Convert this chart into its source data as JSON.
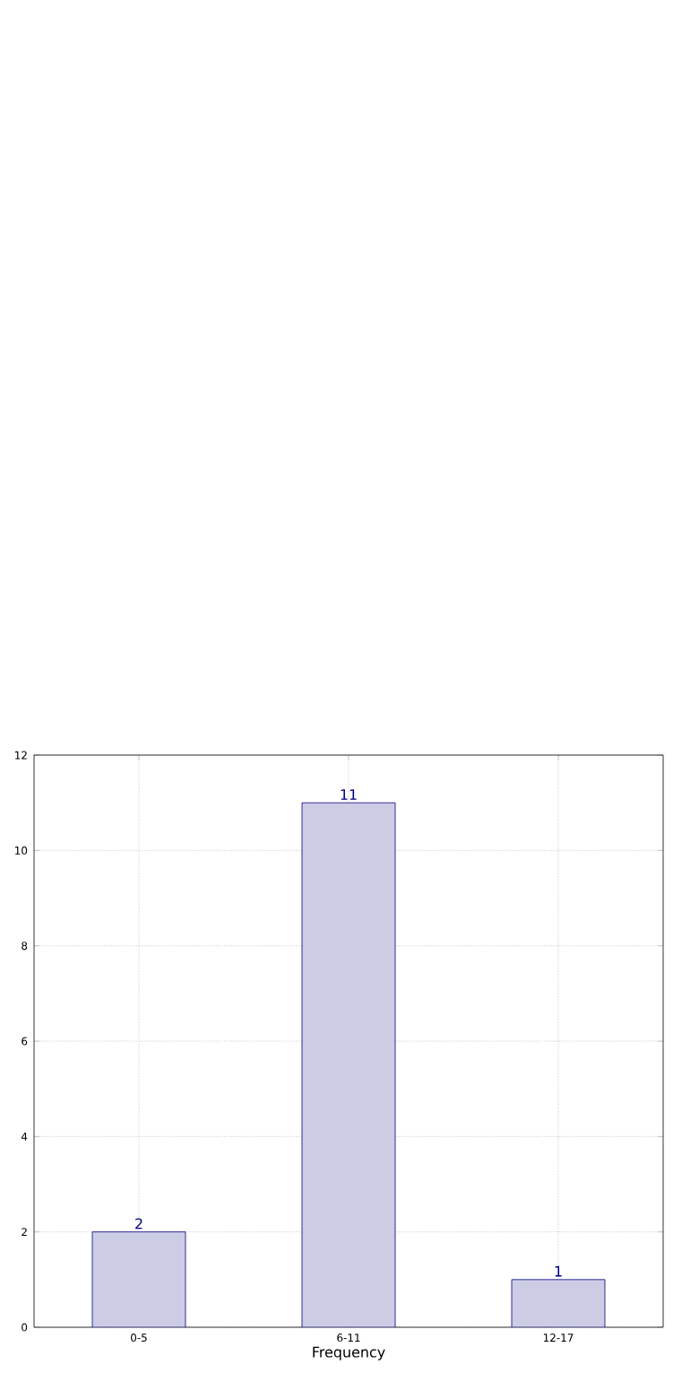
{
  "chart_data": {
    "type": "bar",
    "xlabel": "Frequency",
    "categories": [
      "0-5",
      "6-11",
      "12-17"
    ],
    "values": [
      2,
      11,
      1
    ],
    "color": "#ccccE4",
    "ylim": [
      0,
      12
    ],
    "yticks": [
      0,
      2,
      4,
      6,
      8,
      10,
      12
    ],
    "grid": true,
    "data_labels": true
  }
}
